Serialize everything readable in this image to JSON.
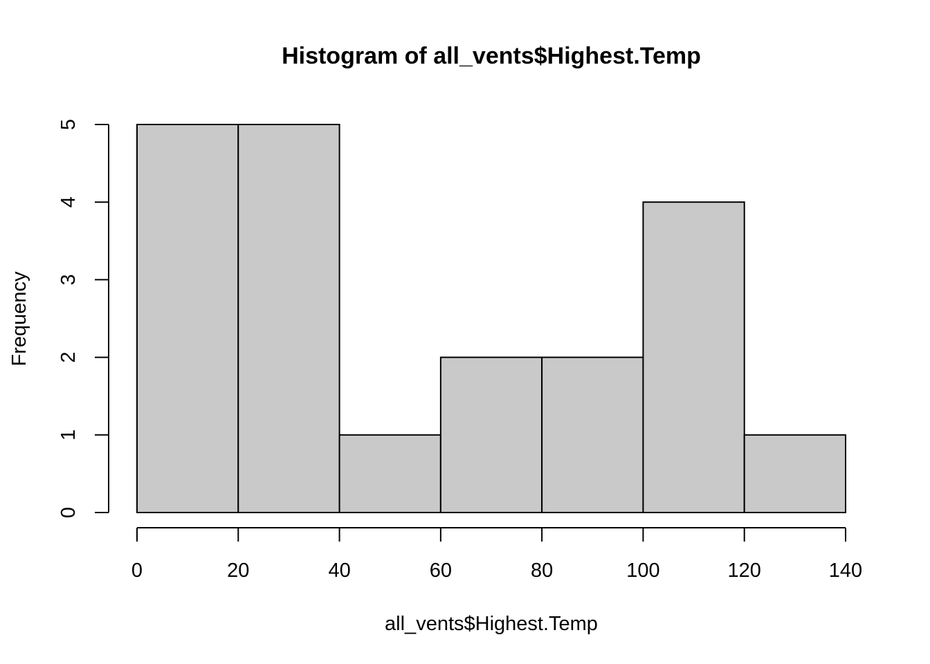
{
  "chart_data": {
    "type": "bar",
    "title": "Histogram of all_vents$Highest.Temp",
    "xlabel": "all_vents$Highest.Temp",
    "ylabel": "Frequency",
    "bins": [
      {
        "start": 0,
        "end": 20,
        "count": 5
      },
      {
        "start": 20,
        "end": 40,
        "count": 5
      },
      {
        "start": 40,
        "end": 60,
        "count": 1
      },
      {
        "start": 60,
        "end": 80,
        "count": 2
      },
      {
        "start": 80,
        "end": 100,
        "count": 2
      },
      {
        "start": 100,
        "end": 120,
        "count": 4
      },
      {
        "start": 120,
        "end": 140,
        "count": 1
      }
    ],
    "xlim": [
      0,
      140
    ],
    "ylim": [
      0,
      5
    ],
    "x_ticks": [
      0,
      20,
      40,
      60,
      80,
      100,
      120,
      140
    ],
    "y_ticks": [
      0,
      1,
      2,
      3,
      4,
      5
    ],
    "grid": false,
    "bar_fill": "#c9c9c9",
    "bar_stroke": "#000000"
  }
}
